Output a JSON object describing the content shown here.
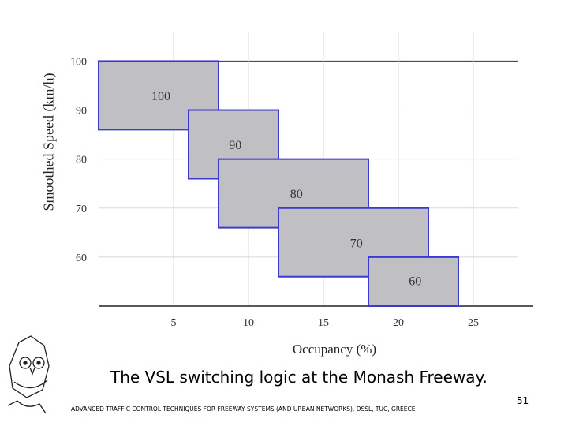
{
  "chart_data": {
    "type": "bar",
    "xlabel": "Occupancy (%)",
    "ylabel": "Smoothed Speed (km/h)",
    "xticks": [
      5,
      10,
      15,
      20,
      25
    ],
    "yticks": [
      60,
      70,
      80,
      90,
      100
    ],
    "xlim": [
      0,
      29
    ],
    "ylim": [
      50,
      102
    ],
    "grid": true,
    "series": [
      {
        "label": "100",
        "x0": 0,
        "x1": 8,
        "y0": 86,
        "y1": 100
      },
      {
        "label": "90",
        "x0": 6,
        "x1": 12,
        "y0": 76,
        "y1": 90
      },
      {
        "label": "80",
        "x0": 8,
        "x1": 18,
        "y0": 66,
        "y1": 80
      },
      {
        "label": "70",
        "x0": 12,
        "x1": 22,
        "y0": 56,
        "y1": 70
      },
      {
        "label": "60",
        "x0": 18,
        "x1": 24,
        "y0": 50,
        "y1": 60
      }
    ],
    "colors": {
      "fill": "#c0c0c4",
      "stroke": "#3a3ad0",
      "grid": "#d8d8d8"
    }
  },
  "slide": {
    "caption": "The VSL switching logic at the Monash Freeway.",
    "page_number": "51",
    "footer": "ADVANCED TRAFFIC CONTROL TECHNIQUES FOR FREEWAY SYSTEMS (AND URBAN NETWORKS), DSSL, TUC, GREECE",
    "logo_icon": "owl-logo-icon"
  }
}
